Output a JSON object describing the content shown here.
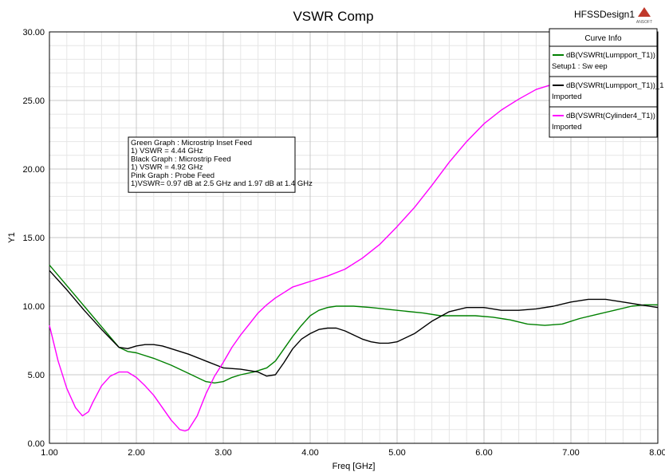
{
  "header": {
    "title": "VSWR Comp",
    "design_name": "HFSSDesign1",
    "logo_text": "ANSOFT"
  },
  "chart_data": {
    "type": "line",
    "title": "VSWR Comp",
    "xlabel": "Freq [GHz]",
    "ylabel": "Y1",
    "xlim": [
      1.0,
      8.0
    ],
    "ylim": [
      0.0,
      30.0
    ],
    "grid": true,
    "x_ticks": [
      1,
      2,
      3,
      4,
      5,
      6,
      7,
      8
    ],
    "x_tick_labels": [
      "1.00",
      "2.00",
      "3.00",
      "4.00",
      "5.00",
      "6.00",
      "7.00",
      "8.00"
    ],
    "y_ticks": [
      0,
      5,
      10,
      15,
      20,
      25,
      30
    ],
    "y_tick_labels": [
      "0.00",
      "5.00",
      "10.00",
      "15.00",
      "20.00",
      "25.00",
      "30.00"
    ],
    "legend": {
      "title": "Curve Info",
      "placement": "top-right",
      "entries": [
        {
          "label": "dB(VSWRt(Lumpport_T1))",
          "sublabel": "Setup1 : Sw eep",
          "color": "#008000"
        },
        {
          "label": "dB(VSWRt(Lumpport_T1))_1",
          "sublabel": "Imported",
          "color": "#000000"
        },
        {
          "label": "dB(VSWRt(Cylinder4_T1))",
          "sublabel": "Imported",
          "color": "#ff00ff"
        }
      ]
    },
    "annotation": {
      "lines": [
        "Green Graph : Microstrip Inset Feed",
        "1) VSWR = 4.44 GHz",
        "Black Graph : Microstrip Feed",
        "1) VSWR = 4.92 GHz",
        "Pink  Graph : Probe Feed",
        "1)VSWR= 0.97 dB at 2.5 GHz and 1.97 dB at 1.4 GHz"
      ]
    },
    "series": [
      {
        "color": "#008000",
        "x": [
          1.0,
          1.2,
          1.4,
          1.6,
          1.8,
          1.9,
          2.0,
          2.2,
          2.4,
          2.6,
          2.8,
          2.9,
          3.0,
          3.1,
          3.2,
          3.35,
          3.5,
          3.6,
          3.7,
          3.8,
          3.9,
          4.0,
          4.1,
          4.2,
          4.3,
          4.5,
          4.7,
          5.0,
          5.3,
          5.5,
          5.7,
          5.9,
          6.1,
          6.3,
          6.5,
          6.7,
          6.9,
          7.1,
          7.3,
          7.5,
          7.7,
          7.85,
          8.0
        ],
        "y": [
          13.0,
          11.5,
          10.0,
          8.5,
          7.0,
          6.7,
          6.6,
          6.2,
          5.7,
          5.1,
          4.5,
          4.4,
          4.5,
          4.8,
          5.0,
          5.2,
          5.5,
          6.0,
          6.9,
          7.8,
          8.6,
          9.3,
          9.7,
          9.9,
          10.0,
          10.0,
          9.9,
          9.7,
          9.5,
          9.3,
          9.3,
          9.3,
          9.2,
          9.0,
          8.7,
          8.6,
          8.7,
          9.1,
          9.4,
          9.7,
          10.0,
          10.1,
          10.1
        ]
      },
      {
        "color": "#000000",
        "x": [
          1.0,
          1.2,
          1.4,
          1.6,
          1.8,
          1.9,
          2.0,
          2.1,
          2.2,
          2.3,
          2.4,
          2.6,
          2.8,
          3.0,
          3.2,
          3.4,
          3.5,
          3.6,
          3.7,
          3.8,
          3.9,
          4.0,
          4.1,
          4.2,
          4.3,
          4.4,
          4.5,
          4.6,
          4.7,
          4.8,
          4.9,
          5.0,
          5.2,
          5.4,
          5.6,
          5.8,
          6.0,
          6.2,
          6.4,
          6.6,
          6.8,
          7.0,
          7.2,
          7.4,
          7.6,
          7.8,
          8.0
        ],
        "y": [
          12.6,
          11.2,
          9.7,
          8.3,
          7.0,
          6.9,
          7.1,
          7.2,
          7.2,
          7.1,
          6.9,
          6.5,
          6.0,
          5.5,
          5.4,
          5.2,
          4.9,
          5.0,
          5.9,
          6.9,
          7.6,
          8.0,
          8.3,
          8.4,
          8.4,
          8.2,
          7.9,
          7.6,
          7.4,
          7.3,
          7.3,
          7.4,
          8.0,
          8.9,
          9.6,
          9.9,
          9.9,
          9.7,
          9.7,
          9.8,
          10.0,
          10.3,
          10.5,
          10.5,
          10.3,
          10.1,
          9.9
        ]
      },
      {
        "color": "#ff00ff",
        "x": [
          1.0,
          1.1,
          1.2,
          1.3,
          1.38,
          1.45,
          1.5,
          1.6,
          1.7,
          1.8,
          1.9,
          2.0,
          2.1,
          2.2,
          2.3,
          2.4,
          2.5,
          2.56,
          2.6,
          2.7,
          2.8,
          2.9,
          3.0,
          3.1,
          3.2,
          3.3,
          3.4,
          3.5,
          3.6,
          3.7,
          3.8,
          4.0,
          4.2,
          4.4,
          4.6,
          4.8,
          5.0,
          5.2,
          5.4,
          5.6,
          5.8,
          6.0,
          6.2,
          6.4,
          6.6,
          6.8,
          7.0
        ],
        "y": [
          8.6,
          6.0,
          4.0,
          2.6,
          2.0,
          2.3,
          3.0,
          4.2,
          4.9,
          5.2,
          5.2,
          4.8,
          4.2,
          3.5,
          2.6,
          1.7,
          1.0,
          0.9,
          1.0,
          2.0,
          3.6,
          4.9,
          5.9,
          7.0,
          7.9,
          8.7,
          9.5,
          10.1,
          10.6,
          11.0,
          11.4,
          11.8,
          12.2,
          12.7,
          13.5,
          14.5,
          15.8,
          17.2,
          18.8,
          20.5,
          22.0,
          23.3,
          24.3,
          25.1,
          25.8,
          26.2,
          26.4
        ]
      }
    ]
  }
}
